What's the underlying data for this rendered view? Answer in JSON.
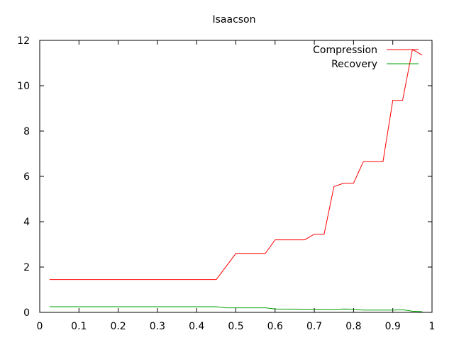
{
  "chart_data": {
    "type": "line",
    "title": "Isaacson",
    "xlabel": "",
    "ylabel": "",
    "xlim": [
      0,
      1
    ],
    "ylim": [
      0,
      12
    ],
    "xticks": [
      0,
      0.1,
      0.2,
      0.3,
      0.4,
      0.5,
      0.6,
      0.7,
      0.8,
      0.9,
      1
    ],
    "yticks": [
      0,
      2,
      4,
      6,
      8,
      10,
      12
    ],
    "xtick_labels": [
      "0",
      "0.1",
      "0.2",
      "0.3",
      "0.4",
      "0.5",
      "0.6",
      "0.7",
      "0.8",
      "0.9",
      "1"
    ],
    "ytick_labels": [
      "0",
      "2",
      "4",
      "6",
      "8",
      "10",
      "12"
    ],
    "grid": false,
    "legend_position": "top-right",
    "series": [
      {
        "name": "Compression",
        "color": "#ff0000",
        "points": [
          [
            0.025,
            1.45
          ],
          [
            0.45,
            1.45
          ],
          [
            0.5,
            2.6
          ],
          [
            0.575,
            2.6
          ],
          [
            0.6,
            3.2
          ],
          [
            0.675,
            3.2
          ],
          [
            0.7,
            3.45
          ],
          [
            0.725,
            3.45
          ],
          [
            0.75,
            5.55
          ],
          [
            0.775,
            5.7
          ],
          [
            0.8,
            5.7
          ],
          [
            0.825,
            6.65
          ],
          [
            0.875,
            6.65
          ],
          [
            0.9,
            9.35
          ],
          [
            0.925,
            9.35
          ],
          [
            0.95,
            11.6
          ],
          [
            0.975,
            11.35
          ]
        ]
      },
      {
        "name": "Recovery",
        "color": "#00a000",
        "points": [
          [
            0.025,
            0.25
          ],
          [
            0.45,
            0.25
          ],
          [
            0.475,
            0.2
          ],
          [
            0.575,
            0.2
          ],
          [
            0.6,
            0.15
          ],
          [
            0.75,
            0.13
          ],
          [
            0.775,
            0.15
          ],
          [
            0.8,
            0.14
          ],
          [
            0.825,
            0.1
          ],
          [
            0.9,
            0.1
          ],
          [
            0.925,
            0.12
          ],
          [
            0.95,
            0.05
          ],
          [
            0.975,
            0.03
          ]
        ]
      }
    ]
  }
}
